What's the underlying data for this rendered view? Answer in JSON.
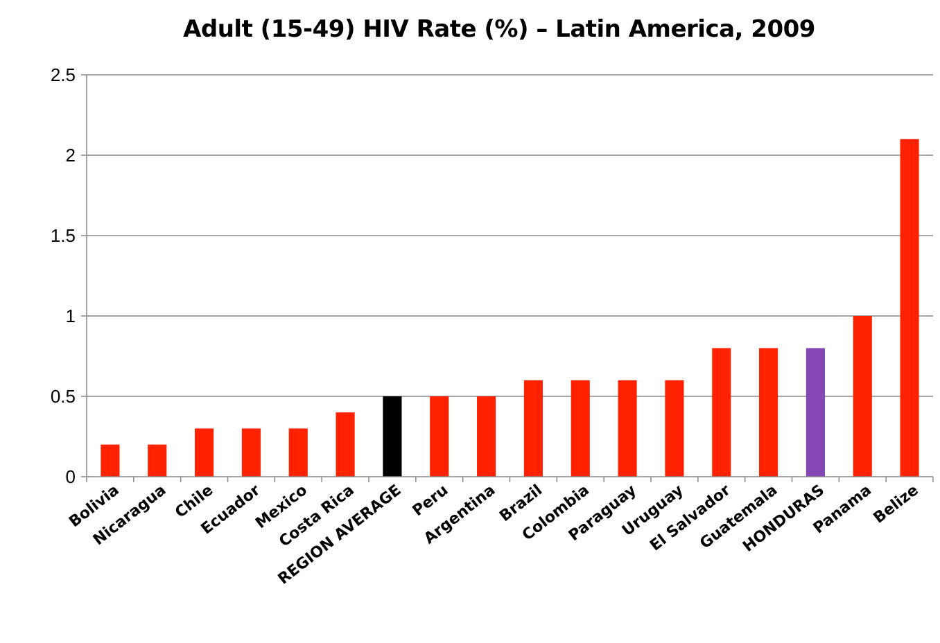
{
  "chart_data": {
    "type": "bar",
    "title": "Adult (15-49) HIV Rate (%) – Latin America, 2009",
    "xlabel": "",
    "ylabel": "",
    "ylim": [
      0,
      2.5
    ],
    "yticks": [
      "0",
      "0.5",
      "1",
      "1.5",
      "2",
      "2.5"
    ],
    "grid": true,
    "legend": "none",
    "categories": [
      "Bolivia",
      "Nicaragua",
      "Chile",
      "Ecuador",
      "Mexico",
      "Costa Rica",
      "REGION AVERAGE",
      "Peru",
      "Argentina",
      "Brazil",
      "Colombia",
      "Paraguay",
      "Uruguay",
      "El Salvador",
      "Guatemala",
      "HONDURAS",
      "Panama",
      "Belize"
    ],
    "values": [
      0.2,
      0.2,
      0.3,
      0.3,
      0.3,
      0.4,
      0.5,
      0.5,
      0.5,
      0.6,
      0.6,
      0.6,
      0.6,
      0.8,
      0.8,
      0.8,
      1.0,
      2.1
    ],
    "colors": {
      "default": "#ff2200",
      "REGION AVERAGE": "#000000",
      "HONDURAS": "#8547b3",
      "gridline": "#888888",
      "axis": "#888888"
    }
  }
}
